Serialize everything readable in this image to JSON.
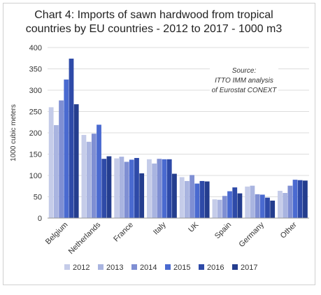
{
  "chart_data": {
    "type": "bar",
    "title_line1": "Chart 4: Imports of sawn hardwood from tropical",
    "title_line2": "countries by EU countries - 2012 to 2017 - 1000 m3",
    "ylabel": "1000 cubic meters",
    "ylim": [
      0,
      400
    ],
    "yticks": [
      "0",
      "50",
      "100",
      "150",
      "200",
      "250",
      "300",
      "350",
      "400"
    ],
    "categories": [
      "Belgium",
      "Netherlands",
      "France",
      "Italy",
      "UK",
      "Spain",
      "Germany",
      "Other"
    ],
    "series": [
      {
        "name": "2012",
        "color": "#c5cce9",
        "values": [
          260,
          195,
          140,
          138,
          96,
          44,
          74,
          64
        ]
      },
      {
        "name": "2013",
        "color": "#a9b4e0",
        "values": [
          218,
          179,
          144,
          128,
          87,
          43,
          76,
          59
        ]
      },
      {
        "name": "2014",
        "color": "#7f8fd3",
        "values": [
          276,
          198,
          132,
          139,
          101,
          52,
          56,
          76
        ]
      },
      {
        "name": "2015",
        "color": "#4a6ad0",
        "values": [
          325,
          219,
          137,
          138,
          81,
          63,
          55,
          90
        ]
      },
      {
        "name": "2016",
        "color": "#2e4aa8",
        "values": [
          374,
          139,
          141,
          138,
          87,
          72,
          48,
          89
        ]
      },
      {
        "name": "2017",
        "color": "#243d8e",
        "values": [
          267,
          145,
          105,
          104,
          86,
          58,
          41,
          88
        ]
      }
    ],
    "source_line1": "Source:",
    "source_line2": "ITTO IMM analysis",
    "source_line3": "of Eurostat CONEXT",
    "grid": true,
    "legend": "bottom"
  }
}
